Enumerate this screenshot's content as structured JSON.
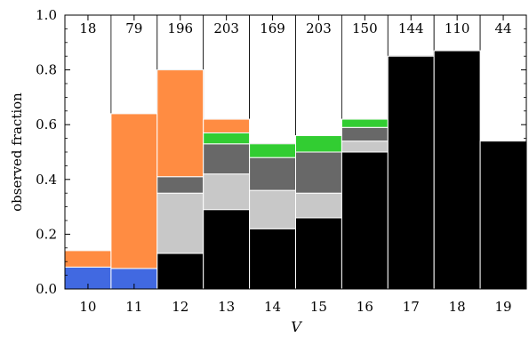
{
  "chart_data": {
    "type": "bar",
    "stacked": true,
    "xlabel": "V",
    "ylabel": "observed fraction",
    "ylim": [
      0.0,
      1.0
    ],
    "categories": [
      "10",
      "11",
      "12",
      "13",
      "14",
      "15",
      "16",
      "17",
      "18",
      "19"
    ],
    "y_ticks": [
      "0.0",
      "0.2",
      "0.4",
      "0.6",
      "0.8",
      "1.0"
    ],
    "counts": [
      "18",
      "79",
      "196",
      "203",
      "169",
      "203",
      "150",
      "144",
      "110",
      "44"
    ],
    "totals": [
      0.14,
      0.64,
      0.8,
      0.62,
      0.53,
      0.56,
      0.62,
      0.85,
      0.87,
      0.54
    ],
    "series": [
      {
        "color": "#000000",
        "values": [
          0.0,
          0.0,
          0.13,
          0.29,
          0.22,
          0.26,
          0.5,
          0.85,
          0.87,
          0.54
        ]
      },
      {
        "color": "#4169e1",
        "values": [
          0.08,
          0.075,
          0.0,
          0.0,
          0.0,
          0.0,
          0.0,
          0.0,
          0.0,
          0.0
        ]
      },
      {
        "color": "#c8c8c8",
        "values": [
          0.0,
          0.0,
          0.22,
          0.13,
          0.14,
          0.09,
          0.04,
          0.0,
          0.0,
          0.0
        ]
      },
      {
        "color": "#686868",
        "values": [
          0.0,
          0.0,
          0.06,
          0.11,
          0.12,
          0.15,
          0.05,
          0.0,
          0.0,
          0.0
        ]
      },
      {
        "color": "#32cd32",
        "values": [
          0.0,
          0.0,
          0.0,
          0.04,
          0.05,
          0.06,
          0.03,
          0.0,
          0.0,
          0.0
        ]
      },
      {
        "color": "#ff8c42",
        "values": [
          0.06,
          0.565,
          0.39,
          0.05,
          0.0,
          0.0,
          0.0,
          0.0,
          0.0,
          0.0
        ]
      }
    ],
    "grid": false,
    "legend": "none",
    "background_bar_color": "#ffffff"
  }
}
